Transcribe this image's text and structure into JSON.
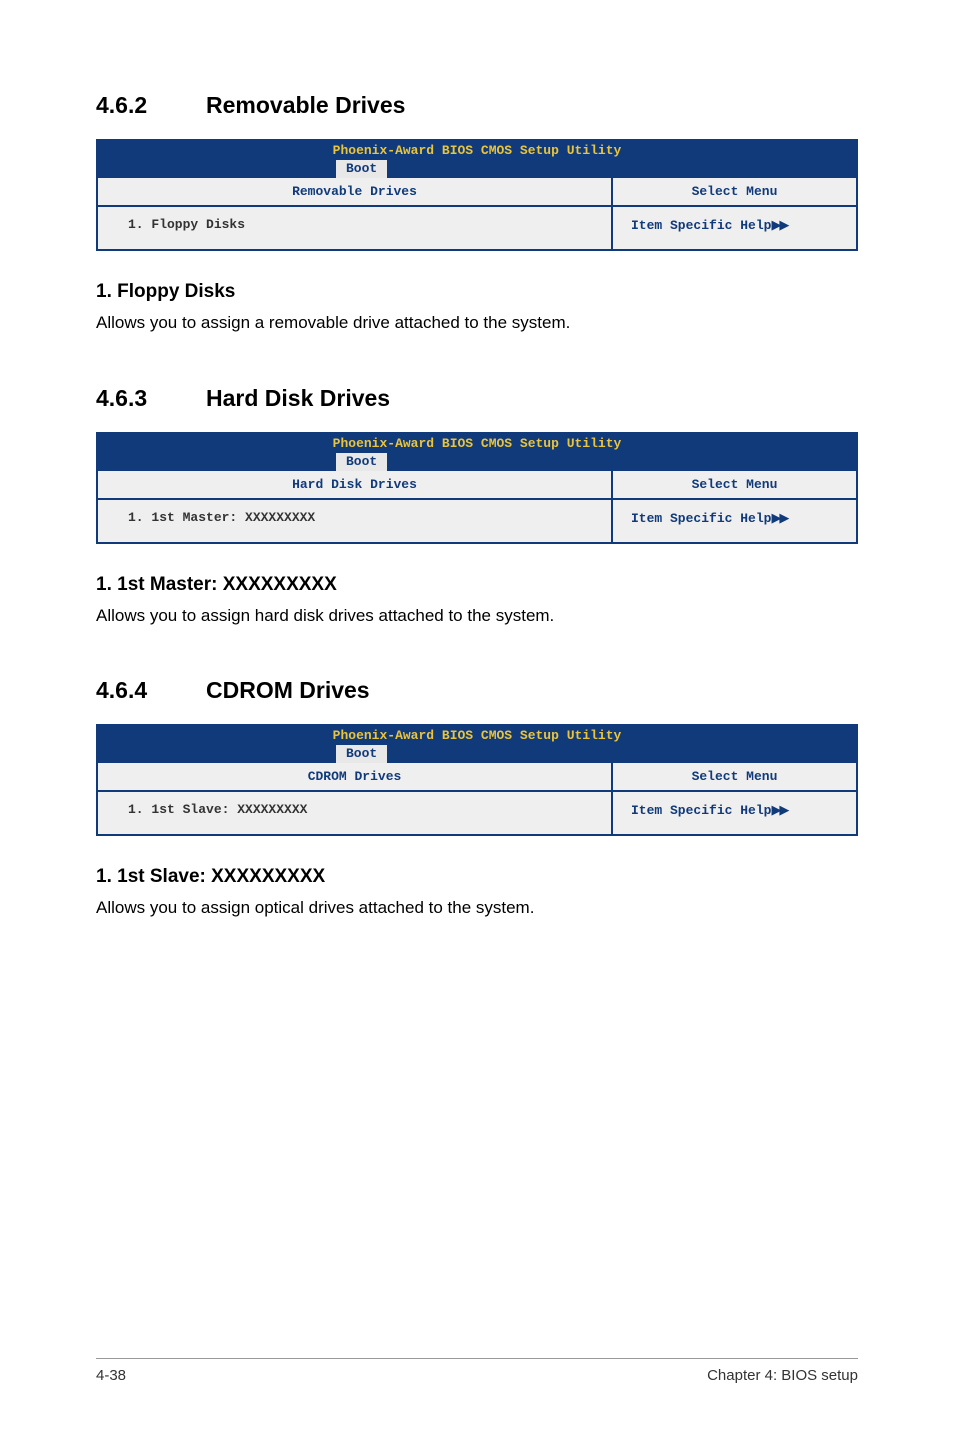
{
  "sections": [
    {
      "num": "4.6.2",
      "title": "Removable Drives",
      "bios": {
        "title": "Phoenix-Award BIOS CMOS Setup Utility",
        "tab": "Boot",
        "left_header": "Removable Drives",
        "right_header": "Select Menu",
        "left_item": "1. Floppy Disks",
        "right_item": "Item Specific Help"
      },
      "sub": "1. Floppy Disks",
      "text": "Allows you to assign a removable drive attached to the system."
    },
    {
      "num": "4.6.3",
      "title": "Hard Disk Drives",
      "bios": {
        "title": "Phoenix-Award BIOS CMOS Setup Utility",
        "tab": "Boot",
        "left_header": "Hard Disk Drives",
        "right_header": "Select Menu",
        "left_item": "1. 1st Master: XXXXXXXXX",
        "right_item": "Item Specific Help"
      },
      "sub": "1. 1st Master: XXXXXXXXX",
      "text": "Allows you to assign hard disk drives attached to the system."
    },
    {
      "num": "4.6.4",
      "title": "CDROM Drives",
      "bios": {
        "title": "Phoenix-Award BIOS CMOS Setup Utility",
        "tab": "Boot",
        "left_header": "CDROM Drives",
        "right_header": "Select Menu",
        "left_item": "1. 1st Slave: XXXXXXXXX",
        "right_item": "Item Specific Help"
      },
      "sub": "1. 1st Slave: XXXXXXXXX",
      "text": "Allows you to assign optical drives attached to the system."
    }
  ],
  "footer": {
    "left": "4-38",
    "right": "Chapter 4: BIOS setup"
  },
  "glyph": "▶▶"
}
